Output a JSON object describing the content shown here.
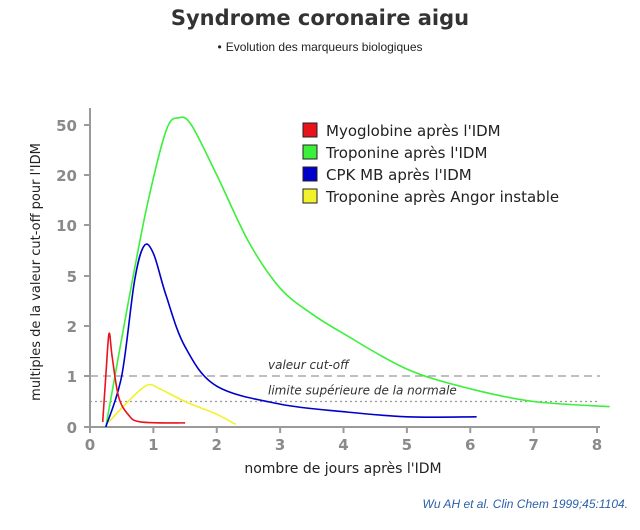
{
  "title": "Syndrome coronaire aigu",
  "subtitle": "Evolution des marqueurs biologiques",
  "citation": {
    "authors": "Wu AH et al. ",
    "journal": "Clin Chem",
    "ref": " 1999;45:1104."
  },
  "chart_data": {
    "type": "line",
    "xlabel": "nombre de jours après l'IDM",
    "ylabel": "multiples de la valeur cut-off pour l'IDM",
    "xlim": [
      0,
      8
    ],
    "x_ticks": [
      "0",
      "1",
      "2",
      "3",
      "4",
      "5",
      "6",
      "7",
      "8"
    ],
    "y_ticks": [
      "0",
      "1",
      "2",
      "5",
      "10",
      "20",
      "50"
    ],
    "y_scale": "nonlinear-log-like",
    "grid": false,
    "legend_position": "top-right",
    "reference_lines": [
      {
        "label": "valeur cut-off",
        "y": 1,
        "style": "dashed",
        "color": "#999999"
      },
      {
        "label": "limite supérieure de la normale",
        "y": 0.5,
        "style": "dotted",
        "color": "#999999"
      }
    ],
    "series": [
      {
        "name": "Myoglobine après l'IDM",
        "color": "#e8141c",
        "points": [
          [
            0.2,
            0.1
          ],
          [
            0.25,
            1.0
          ],
          [
            0.3,
            1.8
          ],
          [
            0.35,
            1.3
          ],
          [
            0.45,
            0.6
          ],
          [
            0.6,
            0.25
          ],
          [
            0.8,
            0.1
          ],
          [
            1.5,
            0.08
          ]
        ]
      },
      {
        "name": "Troponine après l'IDM",
        "color": "#3bf03b",
        "points": [
          [
            0.25,
            0
          ],
          [
            0.6,
            3
          ],
          [
            0.9,
            13
          ],
          [
            1.2,
            45
          ],
          [
            1.4,
            61
          ],
          [
            1.6,
            50
          ],
          [
            2.0,
            20
          ],
          [
            2.5,
            8
          ],
          [
            3.0,
            4
          ],
          [
            3.5,
            2.5
          ],
          [
            4.0,
            1.8
          ],
          [
            5.0,
            1.1
          ],
          [
            6.0,
            0.75
          ],
          [
            7.0,
            0.5
          ],
          [
            8.2,
            0.4
          ]
        ]
      },
      {
        "name": "CPK MB après l'IDM",
        "color": "#0000cc",
        "points": [
          [
            0.25,
            0
          ],
          [
            0.5,
            1.0
          ],
          [
            0.7,
            4.5
          ],
          [
            0.85,
            7.5
          ],
          [
            1.0,
            6.8
          ],
          [
            1.2,
            3.5
          ],
          [
            1.5,
            1.5
          ],
          [
            2.0,
            0.8
          ],
          [
            3.0,
            0.45
          ],
          [
            4.0,
            0.3
          ],
          [
            5.0,
            0.2
          ],
          [
            6.1,
            0.2
          ]
        ]
      },
      {
        "name": "Troponine après Angor instable",
        "color": "#f2f22a",
        "points": [
          [
            0.3,
            0.1
          ],
          [
            0.6,
            0.5
          ],
          [
            0.9,
            0.82
          ],
          [
            1.1,
            0.75
          ],
          [
            1.5,
            0.5
          ],
          [
            2.0,
            0.25
          ],
          [
            2.3,
            0.05
          ]
        ]
      }
    ]
  }
}
